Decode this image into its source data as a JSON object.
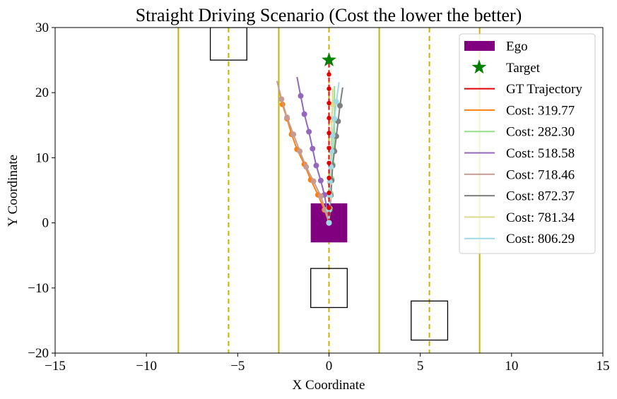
{
  "chart_data": {
    "type": "line",
    "title": "Straight Driving Scenario (Cost the lower the better)",
    "xlabel": "X Coordinate",
    "ylabel": "Y Coordinate",
    "xlim": [
      -15,
      15
    ],
    "ylim": [
      -20,
      30
    ],
    "x_ticks": [
      -15,
      -10,
      -5,
      0,
      5,
      10,
      15
    ],
    "y_ticks": [
      -20,
      -10,
      0,
      10,
      20,
      30
    ],
    "tick_labels_x": [
      "−15",
      "−10",
      "−5",
      "0",
      "5",
      "10",
      "15"
    ],
    "tick_labels_y": [
      "−20",
      "−10",
      "0",
      "10",
      "20",
      "30"
    ],
    "grid": false,
    "legend_position": "upper-right",
    "lane_lines": {
      "solid": [
        -8.25,
        -2.75,
        2.75,
        8.25
      ],
      "dashed": [
        -5.5,
        0,
        5.5
      ],
      "color": "#c8b400"
    },
    "ego": {
      "label": "Ego",
      "x": [
        -1,
        1
      ],
      "y": [
        -3,
        3
      ],
      "color": "#800080"
    },
    "target": {
      "label": "Target",
      "x": 0,
      "y": 25,
      "color": "#008000"
    },
    "obstacles": [
      {
        "x": [
          -6.5,
          -4.5
        ],
        "y": [
          25,
          30
        ]
      },
      {
        "x": [
          -1,
          1
        ],
        "y": [
          -13,
          -7
        ]
      },
      {
        "x": [
          4.5,
          6.5
        ],
        "y": [
          -18,
          -12
        ]
      }
    ],
    "gt_trajectory": {
      "name": "GT Trajectory",
      "color": "#e00000",
      "x": [
        0,
        0,
        0,
        0,
        0,
        0,
        0,
        0,
        0,
        0,
        0,
        0
      ],
      "y": [
        0,
        2.3,
        4.6,
        6.9,
        9.2,
        11.5,
        13.8,
        16.1,
        18.4,
        20.6,
        22.8,
        25
      ]
    },
    "series": [
      {
        "name": "Cost: 319.77",
        "color": "#ff7f0e",
        "x": [
          0.0,
          -0.25,
          -0.6,
          -1.0,
          -1.35,
          -1.75,
          -2.05,
          -2.3,
          -2.55,
          -2.75
        ],
        "y": [
          0.0,
          2.0,
          4.3,
          6.6,
          9.0,
          11.3,
          13.6,
          16.0,
          18.2,
          20.6
        ]
      },
      {
        "name": "Cost: 282.30",
        "color": "#98df8a",
        "x": [
          0.0,
          0.05,
          0.1,
          0.15,
          0.2,
          0.25,
          0.3,
          0.3,
          0.3,
          0.3
        ],
        "y": [
          0.0,
          2.2,
          4.5,
          6.8,
          9.0,
          11.3,
          13.5,
          15.8,
          18.5,
          21.0
        ]
      },
      {
        "name": "Cost: 518.58",
        "color": "#9467bd",
        "x": [
          0.0,
          -0.1,
          -0.25,
          -0.45,
          -0.7,
          -0.9,
          -1.1,
          -1.35,
          -1.55,
          -1.75
        ],
        "y": [
          0.0,
          2.0,
          4.3,
          6.5,
          8.8,
          11.4,
          14.0,
          16.7,
          19.5,
          22.4
        ]
      },
      {
        "name": "Cost: 718.46",
        "color": "#c49c94",
        "x": [
          0.0,
          -0.2,
          -0.45,
          -0.85,
          -1.25,
          -1.6,
          -1.95,
          -2.3,
          -2.6,
          -2.85
        ],
        "y": [
          0.0,
          2.0,
          4.1,
          6.4,
          8.6,
          11.0,
          13.6,
          16.2,
          19.0,
          21.8
        ]
      },
      {
        "name": "Cost: 872.37",
        "color": "#7f7f7f",
        "x": [
          0.0,
          0.05,
          0.1,
          0.15,
          0.2,
          0.3,
          0.4,
          0.5,
          0.6,
          0.75
        ],
        "y": [
          0.0,
          2.0,
          4.2,
          6.5,
          8.8,
          11.0,
          13.3,
          15.6,
          18.0,
          20.8
        ]
      },
      {
        "name": "Cost: 781.34",
        "color": "#dbdb8d",
        "x": [
          0.0,
          0.0,
          0.05,
          0.05,
          0.1,
          0.1,
          0.15,
          0.15,
          0.2,
          0.2
        ],
        "y": [
          0.0,
          2.0,
          4.0,
          6.2,
          8.6,
          11.0,
          13.4,
          15.8,
          18.2,
          20.6
        ]
      },
      {
        "name": "Cost: 806.29",
        "color": "#9edae5",
        "x": [
          0.0,
          0.0,
          0.05,
          0.05,
          0.1,
          0.15,
          0.2,
          0.3,
          0.4,
          0.55
        ],
        "y": [
          0.0,
          2.0,
          4.2,
          6.3,
          8.6,
          11.0,
          13.4,
          16.0,
          18.6,
          21.6
        ]
      }
    ]
  }
}
